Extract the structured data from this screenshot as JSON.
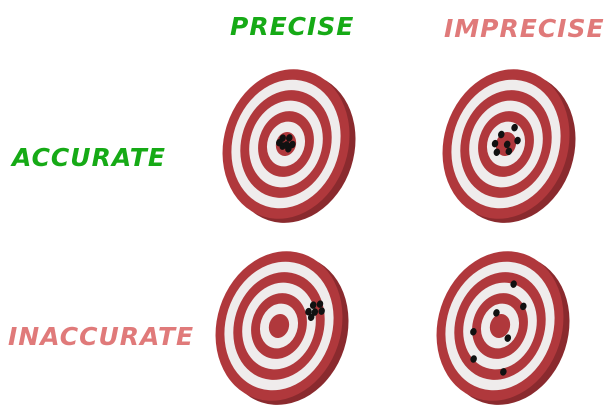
{
  "labels": {
    "precise": "PRECISE",
    "imprecise": "IMPRECISE",
    "accurate": "ACCURATE",
    "inaccurate": "INACCURATE"
  },
  "colors": {
    "accent_green": "#16aa16",
    "accent_red": "#e07a7a",
    "ring_red": "#b0383c",
    "ring_white": "#efecec",
    "board_edge": "#8a2a2e",
    "shot_hole": "#111111"
  },
  "targets": [
    {
      "name": "target-precise-accurate",
      "shots": [
        [
          -0.08,
          -0.06
        ],
        [
          0.02,
          -0.09
        ],
        [
          0.1,
          -0.02
        ],
        [
          -0.04,
          0.04
        ],
        [
          0.06,
          0.05
        ],
        [
          -0.11,
          0.01
        ],
        [
          0.01,
          0.01
        ]
      ]
    },
    {
      "name": "target-imprecise-accurate",
      "shots": [
        [
          0.05,
          -0.24
        ],
        [
          -0.12,
          -0.1
        ],
        [
          0.16,
          -0.09
        ],
        [
          -0.17,
          0.04
        ],
        [
          0.02,
          0.0
        ],
        [
          -0.1,
          0.14
        ],
        [
          0.08,
          0.08
        ]
      ]
    },
    {
      "name": "target-precise-inaccurate",
      "shots": [
        [
          0.42,
          -0.4
        ],
        [
          0.52,
          -0.44
        ],
        [
          0.38,
          -0.3
        ],
        [
          0.48,
          -0.32
        ],
        [
          0.58,
          -0.36
        ],
        [
          0.45,
          -0.24
        ]
      ]
    },
    {
      "name": "target-imprecise-inaccurate",
      "shots": [
        [
          0.0,
          -0.58
        ],
        [
          0.26,
          -0.34
        ],
        [
          -0.12,
          -0.15
        ],
        [
          0.18,
          0.12
        ],
        [
          -0.38,
          0.18
        ],
        [
          -0.24,
          0.52
        ],
        [
          0.28,
          0.56
        ]
      ]
    }
  ]
}
